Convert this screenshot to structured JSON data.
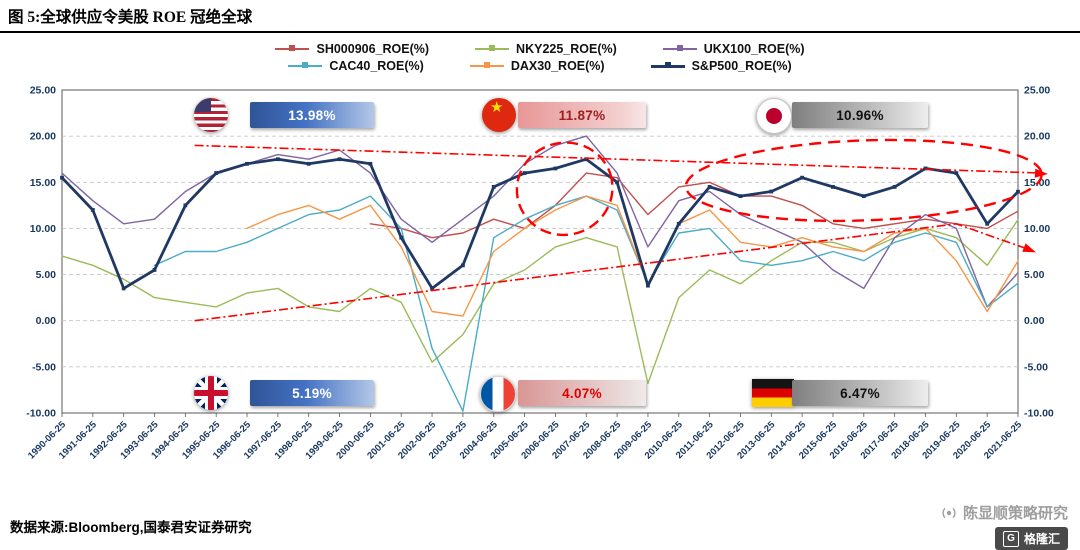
{
  "header": {
    "title": "图 5:全球供应令美股 ROE 冠绝全球"
  },
  "legend": [
    {
      "label": "SH000906_ROE(%)",
      "color": "#C0504D",
      "width": 1.4
    },
    {
      "label": "NKY225_ROE(%)",
      "color": "#9BBB59",
      "width": 1.4
    },
    {
      "label": "UKX100_ROE(%)",
      "color": "#8064A2",
      "width": 1.4
    },
    {
      "label": "CAC40_ROE(%)",
      "color": "#4BACC6",
      "width": 1.4
    },
    {
      "label": "DAX30_ROE(%)",
      "color": "#F79646",
      "width": 1.4
    },
    {
      "label": "S&P500_ROE(%)",
      "color": "#1F3864",
      "width": 2.8
    }
  ],
  "chart_data": {
    "type": "line",
    "title": "全球供应令美股 ROE 冠绝全球",
    "ylim": [
      -10,
      25
    ],
    "yticks": [
      "25.00",
      "20.00",
      "15.00",
      "10.00",
      "5.00",
      "0.00",
      "-5.00",
      "-10.00"
    ],
    "grid": true,
    "legend_position": "top",
    "x": [
      "1990-06-25",
      "1991-06-25",
      "1992-06-25",
      "1993-06-25",
      "1994-06-25",
      "1995-06-25",
      "1996-06-25",
      "1997-06-25",
      "1998-06-25",
      "1999-06-25",
      "2000-06-25",
      "2001-06-25",
      "2002-06-25",
      "2003-06-25",
      "2004-06-25",
      "2005-06-25",
      "2006-06-25",
      "2007-06-25",
      "2008-06-25",
      "2009-06-25",
      "2010-06-25",
      "2011-06-25",
      "2012-06-25",
      "2013-06-25",
      "2014-06-25",
      "2015-06-25",
      "2016-06-25",
      "2017-06-25",
      "2018-06-25",
      "2019-06-25",
      "2020-06-25",
      "2021-06-25"
    ],
    "series": [
      {
        "name": "SH000906_ROE(%)",
        "color": "#C0504D",
        "width": 1.4,
        "markers": false,
        "values": [
          null,
          null,
          null,
          null,
          null,
          null,
          null,
          null,
          null,
          null,
          10.5,
          10,
          9,
          9.5,
          11,
          10,
          12.5,
          16,
          15.5,
          11.5,
          14.5,
          15,
          13.5,
          13.5,
          12.5,
          10.5,
          10,
          10.5,
          11,
          10.5,
          10,
          11.87
        ]
      },
      {
        "name": "NKY225_ROE(%)",
        "color": "#9BBB59",
        "width": 1.4,
        "markers": false,
        "values": [
          7,
          6,
          4.5,
          2.5,
          2,
          1.5,
          3,
          3.5,
          1.5,
          1,
          3.5,
          2,
          -4.5,
          -1.5,
          4,
          5.5,
          8,
          9,
          8,
          -6.8,
          2.5,
          5.5,
          4,
          6.5,
          8.5,
          8.5,
          7.5,
          9,
          10,
          9,
          6,
          10.96
        ]
      },
      {
        "name": "UKX100_ROE(%)",
        "color": "#8064A2",
        "width": 1.4,
        "markers": false,
        "values": [
          16,
          13,
          10.5,
          11,
          14,
          16,
          17,
          18,
          17.5,
          18.5,
          16,
          11,
          8.5,
          11,
          13.5,
          17,
          19,
          20,
          16,
          8,
          13,
          14,
          11.5,
          10,
          8.5,
          5.5,
          3.5,
          9,
          11.5,
          10,
          1.5,
          5.19
        ]
      },
      {
        "name": "CAC40_ROE(%)",
        "color": "#4BACC6",
        "width": 1.4,
        "markers": false,
        "values": [
          null,
          null,
          null,
          6,
          7.5,
          7.5,
          8.5,
          10,
          11.5,
          12,
          13.5,
          10,
          -3,
          -9.8,
          9,
          11,
          12.5,
          13.5,
          12,
          4,
          9.5,
          10,
          6.5,
          6,
          6.5,
          7.5,
          6.5,
          8.5,
          9.5,
          8.5,
          1.5,
          4.07
        ]
      },
      {
        "name": "DAX30_ROE(%)",
        "color": "#F79646",
        "width": 1.4,
        "markers": false,
        "values": [
          null,
          null,
          null,
          null,
          null,
          null,
          10,
          11.5,
          12.5,
          11,
          12.5,
          8,
          1,
          0.5,
          7.5,
          10,
          12,
          13.5,
          12.5,
          4,
          10.5,
          12,
          8.5,
          8,
          9,
          8,
          7.5,
          9.5,
          10,
          6.5,
          1,
          6.47
        ]
      },
      {
        "name": "S&P500_ROE(%)",
        "color": "#1F3864",
        "width": 2.8,
        "markers": true,
        "values": [
          15.5,
          12,
          3.5,
          5.5,
          12.5,
          16,
          17,
          17.5,
          17,
          17.5,
          17,
          9,
          3.5,
          6,
          14.5,
          16,
          16.5,
          17.5,
          15,
          3.8,
          10.5,
          14.5,
          13.5,
          14,
          15.5,
          14.5,
          13.5,
          14.5,
          16.5,
          16,
          10.5,
          13.98
        ]
      }
    ],
    "annotation_color": "#FF0000"
  },
  "callouts": [
    {
      "country": "USA",
      "value": "13.98%"
    },
    {
      "country": "China",
      "value": "11.87%"
    },
    {
      "country": "Japan",
      "value": "10.96%"
    },
    {
      "country": "UK",
      "value": "5.19%"
    },
    {
      "country": "France",
      "value": "4.07%"
    },
    {
      "country": "Germany",
      "value": "6.47%"
    }
  ],
  "footer": {
    "source": "数据来源:Bloomberg,国泰君安证券研究"
  },
  "watermark": {
    "account": "陈显顺策略研究",
    "logo": "格隆汇"
  }
}
